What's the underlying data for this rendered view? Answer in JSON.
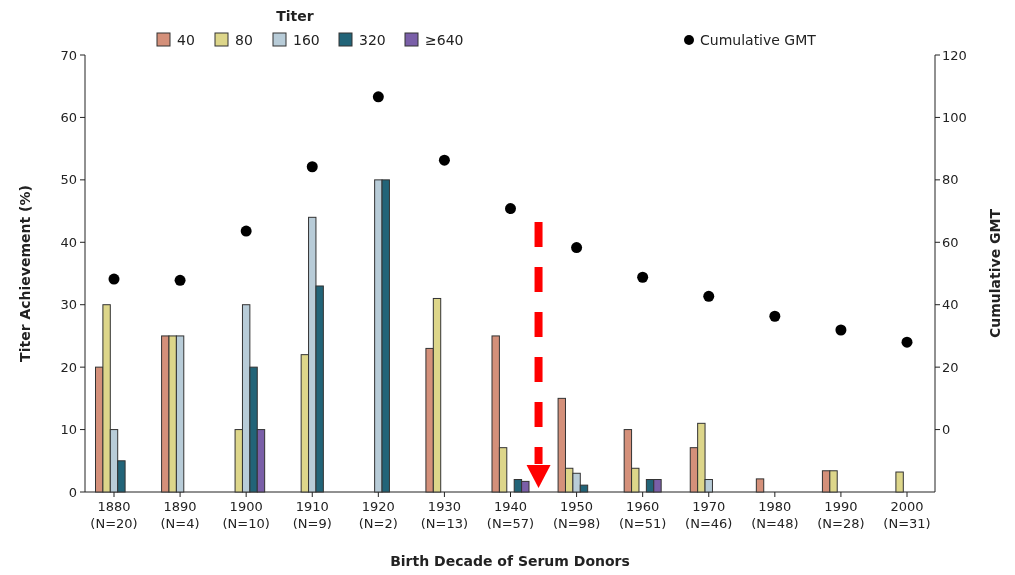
{
  "chart_data": {
    "type": "bar",
    "xlabel": "Birth Decade of Serum Donors",
    "ylabel": "Titer Achievement (%)",
    "y2label": "Cumulative GMT",
    "legend_title": "Titer",
    "legend": "top",
    "categories": [
      "1880\n(N=20)",
      "1890\n(N=4)",
      "1900\n(N=10)",
      "1910\n(N=9)",
      "1920\n(N=2)",
      "1930\n(N=13)",
      "1940\n(N=57)",
      "1950\n(N=98)",
      "1960\n(N=51)",
      "1970\n(N=46)",
      "1980\n(N=48)",
      "1990\n(N=28)",
      "2000\n(N=31)"
    ],
    "ylim": [
      0,
      70
    ],
    "yticks": [
      0,
      10,
      20,
      30,
      40,
      50,
      60,
      70
    ],
    "y2lim": [
      -20,
      120
    ],
    "y2ticks": [
      0,
      20,
      40,
      60,
      80,
      100,
      120
    ],
    "series": [
      {
        "name": "40",
        "color": "#d4907a",
        "values": [
          20,
          25,
          null,
          null,
          null,
          23,
          25,
          15,
          10,
          7.1,
          2.1,
          3.4,
          null
        ]
      },
      {
        "name": "80",
        "color": "#ddd68a",
        "values": [
          30,
          25,
          10,
          22,
          null,
          31,
          7.1,
          3.8,
          3.8,
          11,
          null,
          3.4,
          3.2
        ]
      },
      {
        "name": "160",
        "color": "#b8ccd8",
        "values": [
          10,
          25,
          30,
          44,
          50,
          null,
          null,
          3,
          null,
          2,
          null,
          null,
          null
        ]
      },
      {
        "name": "320",
        "color": "#226478",
        "values": [
          5,
          null,
          20,
          33,
          50,
          null,
          2,
          1.1,
          2,
          null,
          null,
          null,
          null
        ]
      },
      {
        "name": "≥640",
        "color": "#7a5fa8",
        "values": [
          null,
          null,
          10,
          null,
          null,
          null,
          1.7,
          null,
          2,
          null,
          null,
          null,
          null
        ]
      },
      {
        "name": "Cumulative GMT",
        "type": "scatter",
        "axis": "y2",
        "marker": "circle",
        "color": "#000000",
        "values": [
          48.2,
          47.8,
          63.6,
          84.2,
          106.6,
          86.3,
          70.8,
          58.3,
          48.8,
          42.7,
          36.3,
          31.9,
          28
        ]
      }
    ]
  }
}
